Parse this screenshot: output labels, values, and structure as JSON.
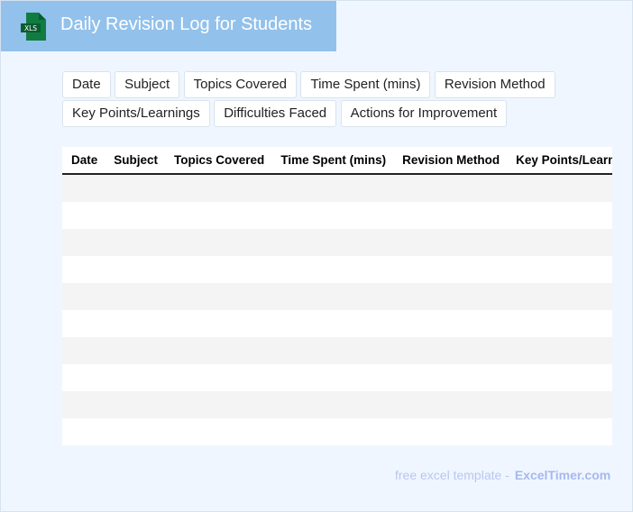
{
  "header": {
    "title": "Daily Revision Log for Students",
    "icon": "xls-file-icon",
    "icon_text": "XLS"
  },
  "chips": [
    "Date",
    "Subject",
    "Topics Covered",
    "Time Spent (mins)",
    "Revision Method",
    "Key Points/Learnings",
    "Difficulties Faced",
    "Actions for Improvement"
  ],
  "table": {
    "columns": [
      "Date",
      "Subject",
      "Topics Covered",
      "Time Spent (mins)",
      "Revision Method",
      "Key Points/Learnings"
    ],
    "rows": 10
  },
  "footer": {
    "text": "free excel template -",
    "brand": "ExcelTimer.com"
  },
  "colors": {
    "header": "#92c1eb",
    "background": "#f0f6ff",
    "icon": "#107c41"
  }
}
